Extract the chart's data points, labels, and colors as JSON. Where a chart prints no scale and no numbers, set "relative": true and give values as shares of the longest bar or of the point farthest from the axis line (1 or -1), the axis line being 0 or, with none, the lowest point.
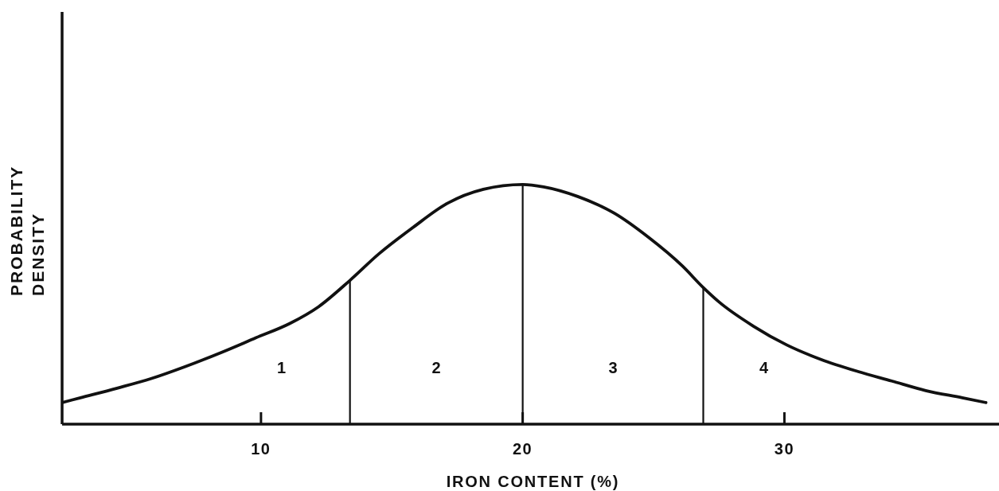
{
  "chart_data": {
    "type": "line",
    "xlabel": "IRON CONTENT (%)",
    "ylabel": "PROBABILITY\nDENSITY",
    "relative": true,
    "x": [
      2.4,
      3.1,
      4.5,
      5.8,
      7.1,
      8.5,
      9.8,
      11.1,
      12.2,
      13.4,
      14.5,
      15.8,
      17.1,
      18.5,
      20,
      20.8,
      22.1,
      23.5,
      24.8,
      26.1,
      26.9,
      27.5,
      28.8,
      30.1,
      31.4,
      32.8,
      34.1,
      35.4,
      36.8,
      37.7
    ],
    "series": [
      {
        "color": "#111111",
        "values": [
          0.09,
          0.11,
          0.15,
          0.19,
          0.24,
          0.3,
          0.36,
          0.42,
          0.49,
          0.6,
          0.71,
          0.82,
          0.92,
          0.98,
          1,
          0.99,
          0.95,
          0.88,
          0.78,
          0.66,
          0.57,
          0.51,
          0.41,
          0.33,
          0.27,
          0.22,
          0.18,
          0.14,
          0.11,
          0.09
        ]
      }
    ],
    "xlim": [
      2.4,
      38.2
    ],
    "xticks": [
      10,
      20,
      30
    ],
    "ref_lines": [
      {
        "axis": "x",
        "value": 13.4
      },
      {
        "axis": "x",
        "value": 20
      },
      {
        "axis": "x",
        "value": 26.9
      }
    ],
    "annotations": [
      "1",
      "2",
      "3",
      "4"
    ]
  }
}
